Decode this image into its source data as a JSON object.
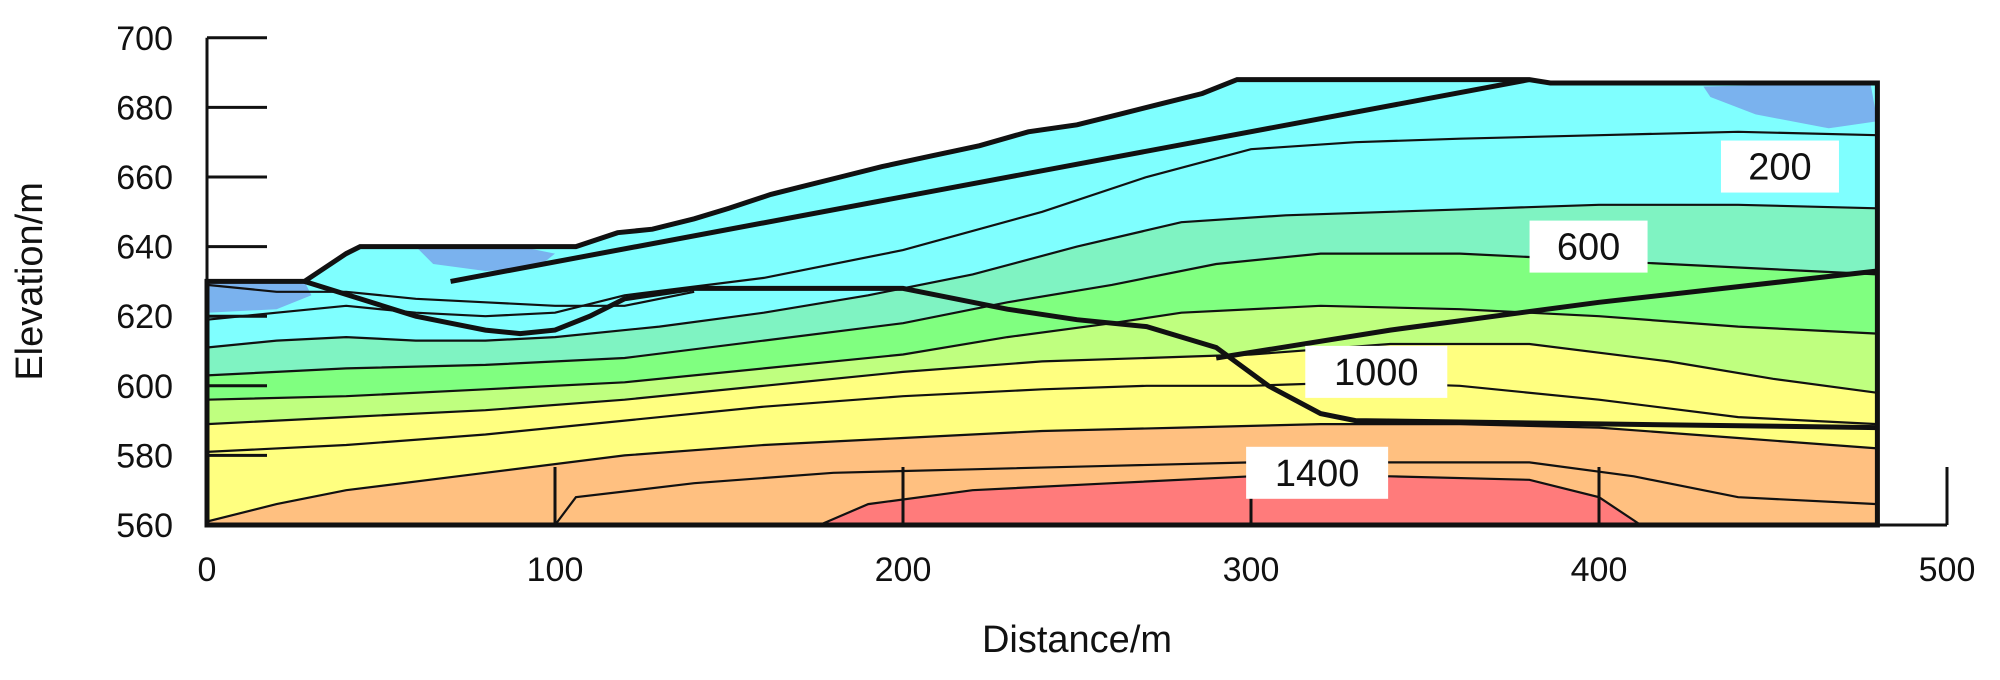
{
  "chart_data": {
    "type": "contour",
    "xlabel": "Distance/m",
    "ylabel": "Elevation/m",
    "xlim": [
      0,
      500
    ],
    "ylim": [
      560,
      700
    ],
    "x_ticks": [
      0,
      100,
      200,
      300,
      400,
      500
    ],
    "y_ticks": [
      560,
      580,
      600,
      620,
      640,
      660,
      680,
      700
    ],
    "model_extent": [
      0,
      480
    ],
    "contour_labels": [
      {
        "text": "200",
        "x": 452,
        "y": 663
      },
      {
        "text": "600",
        "x": 397,
        "y": 640
      },
      {
        "text": "1000",
        "x": 336,
        "y": 604
      },
      {
        "text": "1400",
        "x": 319,
        "y": 575
      }
    ],
    "colors": {
      "band_0": "#7ab2ee",
      "band_1": "#7fffff",
      "band_2": "#7ff3c2",
      "band_3": "#80ff80",
      "band_4": "#bfff7f",
      "band_5": "#ffff80",
      "band_6": "#ffc080",
      "band_7": "#ff7b7b",
      "line": "#111111"
    },
    "surface": [
      [
        0,
        630
      ],
      [
        28,
        630
      ],
      [
        40,
        638
      ],
      [
        44,
        640
      ],
      [
        106,
        640
      ],
      [
        118,
        644
      ],
      [
        128,
        645
      ],
      [
        140,
        648
      ],
      [
        150,
        651
      ],
      [
        162,
        655
      ],
      [
        170,
        657
      ],
      [
        182,
        660
      ],
      [
        194,
        663
      ],
      [
        208,
        666
      ],
      [
        222,
        669
      ],
      [
        236,
        673
      ],
      [
        250,
        675
      ],
      [
        262,
        678
      ],
      [
        274,
        681
      ],
      [
        286,
        684
      ],
      [
        296,
        688
      ],
      [
        380,
        688
      ],
      [
        386,
        687
      ],
      [
        480,
        687
      ]
    ],
    "contour_lines": [
      [
        [
          0,
          629
        ],
        [
          20,
          627
        ],
        [
          40,
          627
        ],
        [
          60,
          625
        ],
        [
          80,
          624
        ],
        [
          100,
          623
        ],
        [
          120,
          623
        ],
        [
          140,
          627
        ]
      ],
      [
        [
          0,
          619
        ],
        [
          20,
          621
        ],
        [
          40,
          623
        ],
        [
          60,
          621
        ],
        [
          80,
          620
        ],
        [
          100,
          621
        ],
        [
          120,
          626
        ],
        [
          160,
          631
        ],
        [
          200,
          639
        ],
        [
          240,
          650
        ],
        [
          270,
          660
        ],
        [
          300,
          668
        ],
        [
          330,
          670
        ],
        [
          360,
          671
        ],
        [
          400,
          672
        ],
        [
          440,
          673
        ],
        [
          480,
          672
        ]
      ],
      [
        [
          0,
          611
        ],
        [
          20,
          613
        ],
        [
          40,
          614
        ],
        [
          60,
          613
        ],
        [
          80,
          613
        ],
        [
          100,
          614
        ],
        [
          130,
          617
        ],
        [
          160,
          621
        ],
        [
          190,
          626
        ],
        [
          220,
          632
        ],
        [
          250,
          640
        ],
        [
          280,
          647
        ],
        [
          310,
          649
        ],
        [
          340,
          650
        ],
        [
          370,
          651
        ],
        [
          400,
          652
        ],
        [
          440,
          652
        ],
        [
          480,
          651
        ]
      ],
      [
        [
          0,
          603
        ],
        [
          40,
          605
        ],
        [
          80,
          606
        ],
        [
          120,
          608
        ],
        [
          160,
          613
        ],
        [
          200,
          618
        ],
        [
          230,
          624
        ],
        [
          260,
          629
        ],
        [
          290,
          635
        ],
        [
          320,
          638
        ],
        [
          360,
          638
        ],
        [
          400,
          636
        ],
        [
          440,
          634
        ],
        [
          480,
          632
        ]
      ],
      [
        [
          0,
          596
        ],
        [
          40,
          597
        ],
        [
          80,
          599
        ],
        [
          120,
          601
        ],
        [
          160,
          605
        ],
        [
          200,
          609
        ],
        [
          230,
          614
        ],
        [
          260,
          618
        ],
        [
          280,
          621
        ],
        [
          320,
          623
        ],
        [
          360,
          622
        ],
        [
          400,
          620
        ],
        [
          440,
          617
        ],
        [
          480,
          615
        ]
      ],
      [
        [
          0,
          589
        ],
        [
          40,
          591
        ],
        [
          80,
          593
        ],
        [
          120,
          596
        ],
        [
          160,
          600
        ],
        [
          200,
          604
        ],
        [
          240,
          607
        ],
        [
          270,
          608
        ],
        [
          300,
          609
        ],
        [
          340,
          612
        ],
        [
          380,
          612
        ],
        [
          420,
          607
        ],
        [
          450,
          602
        ],
        [
          480,
          598
        ]
      ],
      [
        [
          0,
          581
        ],
        [
          40,
          583
        ],
        [
          80,
          586
        ],
        [
          120,
          590
        ],
        [
          160,
          594
        ],
        [
          200,
          597
        ],
        [
          240,
          599
        ],
        [
          270,
          600
        ],
        [
          300,
          600
        ],
        [
          330,
          601
        ],
        [
          360,
          600
        ],
        [
          400,
          596
        ],
        [
          440,
          591
        ],
        [
          480,
          589
        ]
      ],
      [
        [
          0,
          561
        ],
        [
          20,
          566
        ],
        [
          40,
          570
        ],
        [
          80,
          575
        ],
        [
          120,
          580
        ],
        [
          160,
          583
        ],
        [
          200,
          585
        ],
        [
          240,
          587
        ],
        [
          280,
          588
        ],
        [
          320,
          589
        ],
        [
          360,
          589
        ],
        [
          400,
          588
        ],
        [
          440,
          585
        ],
        [
          480,
          582
        ]
      ],
      [
        [
          100,
          560
        ],
        [
          106,
          568
        ],
        [
          140,
          572
        ],
        [
          180,
          575
        ],
        [
          220,
          576
        ],
        [
          260,
          577
        ],
        [
          300,
          578
        ],
        [
          340,
          578
        ],
        [
          380,
          578
        ],
        [
          410,
          574
        ],
        [
          440,
          568
        ],
        [
          480,
          566
        ]
      ],
      [
        [
          176,
          560
        ],
        [
          190,
          566
        ],
        [
          220,
          570
        ],
        [
          260,
          572
        ],
        [
          300,
          574
        ],
        [
          340,
          574
        ],
        [
          380,
          573
        ],
        [
          400,
          568
        ],
        [
          412,
          560
        ]
      ]
    ],
    "boundaries": [
      [
        [
          28,
          630
        ],
        [
          60,
          620
        ],
        [
          70,
          618
        ],
        [
          80,
          616
        ],
        [
          90,
          615
        ],
        [
          100,
          616
        ],
        [
          110,
          620
        ],
        [
          120,
          625
        ],
        [
          140,
          628
        ],
        [
          180,
          628
        ],
        [
          200,
          628
        ],
        [
          210,
          626
        ],
        [
          230,
          622
        ],
        [
          250,
          619
        ],
        [
          270,
          617
        ],
        [
          290,
          611
        ],
        [
          305,
          600
        ],
        [
          320,
          592
        ],
        [
          330,
          590
        ],
        [
          480,
          588
        ]
      ],
      [
        [
          70,
          630
        ],
        [
          380,
          688
        ]
      ],
      [
        [
          290,
          608
        ],
        [
          340,
          616
        ],
        [
          400,
          624
        ],
        [
          480,
          633
        ]
      ]
    ]
  }
}
